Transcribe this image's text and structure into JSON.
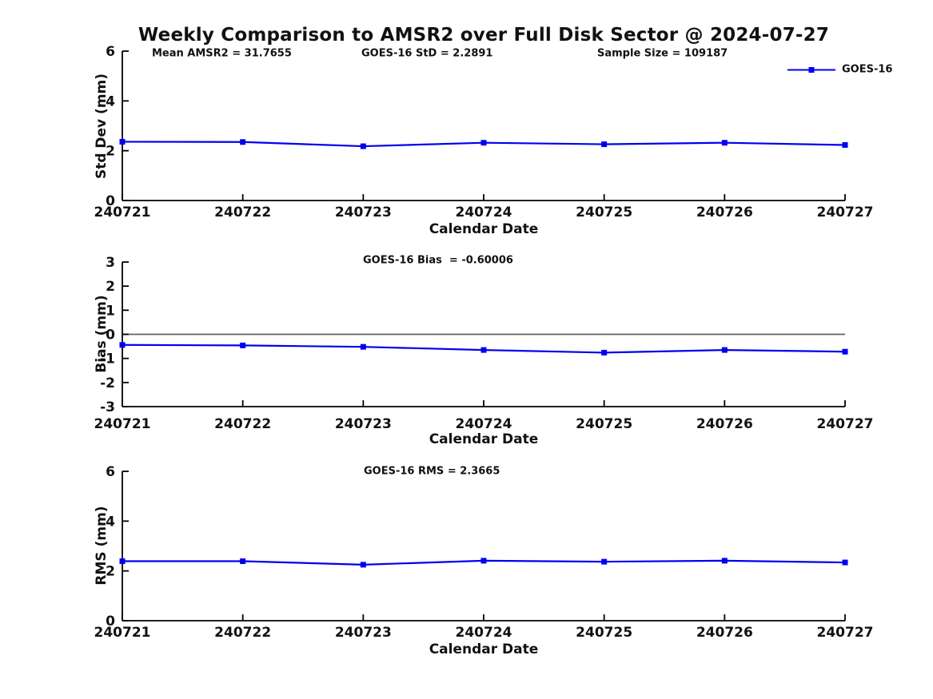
{
  "title": "Weekly Comparison to AMSR2 over Full Disk Sector @ 2024-07-27",
  "legend": {
    "entries": [
      {
        "label": "GOES-16",
        "marker": "square"
      }
    ]
  },
  "colors": {
    "line": "#0000f0",
    "axis": "#000000",
    "zero_line": "#606060",
    "text": "#111111"
  },
  "chart_data": [
    {
      "type": "line",
      "categories": [
        "240721",
        "240722",
        "240723",
        "240724",
        "240725",
        "240726",
        "240727"
      ],
      "series": [
        {
          "name": "GOES-16",
          "values": [
            2.36,
            2.35,
            2.18,
            2.32,
            2.26,
            2.32,
            2.23
          ]
        }
      ],
      "xlabel": "Calendar Date",
      "ylabel": "Std Dev (mm)",
      "ylim": [
        0,
        6
      ],
      "yticks": [
        0,
        2,
        4,
        6
      ],
      "grid": false,
      "zero_line": false,
      "legend_position": "top-right",
      "annotations": [
        {
          "text": "Mean AMSR2 = 31.7655"
        },
        {
          "text": "GOES-16 StD = 2.2891"
        },
        {
          "text": "Sample Size = 109187"
        }
      ]
    },
    {
      "type": "line",
      "categories": [
        "240721",
        "240722",
        "240723",
        "240724",
        "240725",
        "240726",
        "240727"
      ],
      "series": [
        {
          "name": "GOES-16",
          "values": [
            -0.44,
            -0.46,
            -0.52,
            -0.65,
            -0.76,
            -0.65,
            -0.72
          ]
        }
      ],
      "xlabel": "Calendar Date",
      "ylabel": "Bias (mm)",
      "ylim": [
        -3,
        3
      ],
      "yticks": [
        -3,
        -2,
        -1,
        0,
        1,
        2,
        3
      ],
      "grid": false,
      "zero_line": true,
      "annotations": [
        {
          "text": "GOES-16 Bias  = -0.60006"
        }
      ]
    },
    {
      "type": "line",
      "categories": [
        "240721",
        "240722",
        "240723",
        "240724",
        "240725",
        "240726",
        "240727"
      ],
      "series": [
        {
          "name": "GOES-16",
          "values": [
            2.39,
            2.39,
            2.25,
            2.41,
            2.37,
            2.41,
            2.34
          ]
        }
      ],
      "xlabel": "Calendar Date",
      "ylabel": "RMS (mm)",
      "ylim": [
        0,
        6
      ],
      "yticks": [
        0,
        2,
        4,
        6
      ],
      "grid": false,
      "zero_line": false,
      "annotations": [
        {
          "text": "GOES-16 RMS = 2.3665"
        }
      ]
    }
  ]
}
